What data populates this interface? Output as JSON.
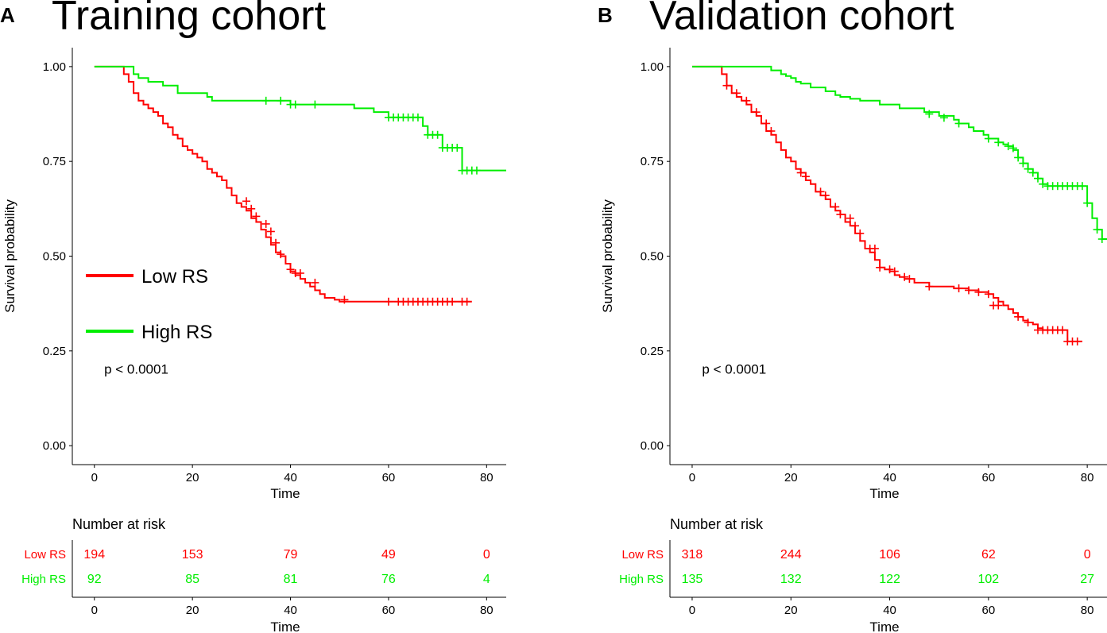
{
  "colors": {
    "low": "#ff0000",
    "high": "#00ee00",
    "axis": "#000000"
  },
  "chart_data": [
    {
      "type": "line",
      "panel": "A",
      "title": "Training cohort",
      "xlabel": "Time",
      "ylabel": "Survival probability",
      "xlim": [
        -4.5,
        84
      ],
      "ylim": [
        -0.05,
        1.05
      ],
      "xticks": [
        0,
        20,
        40,
        60,
        80
      ],
      "xtick_labels": [
        "0",
        "20",
        "40",
        "60",
        "80"
      ],
      "yticks": [
        0,
        0.25,
        0.5,
        0.75,
        1.0
      ],
      "ytick_labels": [
        "0.00",
        "0.25",
        "0.50",
        "0.75",
        "1.00"
      ],
      "pvalue": "p < 0.0001",
      "legend": {
        "position": "middle-left",
        "entries": [
          "Low RS",
          "High RS"
        ]
      },
      "series": [
        {
          "name": "Low RS",
          "color_key": "low",
          "x": [
            0,
            5,
            6,
            7,
            8,
            9,
            10,
            11,
            12,
            13,
            14,
            15,
            16,
            17,
            18,
            19,
            20,
            21,
            22,
            23,
            24,
            25,
            26,
            27,
            28,
            29,
            30,
            31,
            32,
            33,
            34,
            35,
            36,
            37,
            38,
            39,
            40,
            41,
            42,
            43,
            44,
            45,
            46,
            47,
            48,
            49,
            50,
            52,
            77
          ],
          "y": [
            1.0,
            1.0,
            0.98,
            0.96,
            0.93,
            0.91,
            0.9,
            0.89,
            0.88,
            0.87,
            0.85,
            0.84,
            0.82,
            0.81,
            0.79,
            0.78,
            0.77,
            0.76,
            0.75,
            0.73,
            0.72,
            0.71,
            0.7,
            0.68,
            0.66,
            0.64,
            0.63,
            0.62,
            0.6,
            0.59,
            0.57,
            0.55,
            0.53,
            0.51,
            0.5,
            0.48,
            0.46,
            0.45,
            0.44,
            0.43,
            0.42,
            0.41,
            0.4,
            0.39,
            0.39,
            0.385,
            0.38,
            0.38,
            0.38
          ],
          "censor_x": [
            31,
            32,
            33,
            35,
            36,
            37,
            38,
            40,
            41,
            42,
            45,
            51,
            60,
            62,
            63,
            64,
            65,
            66,
            67,
            68,
            69,
            70,
            71,
            72,
            73,
            75,
            76
          ],
          "censor_y": [
            0.645,
            0.625,
            0.605,
            0.585,
            0.565,
            0.535,
            0.505,
            0.465,
            0.455,
            0.455,
            0.43,
            0.385,
            0.38,
            0.38,
            0.38,
            0.38,
            0.38,
            0.38,
            0.38,
            0.38,
            0.38,
            0.38,
            0.38,
            0.38,
            0.38,
            0.38,
            0.38
          ]
        },
        {
          "name": "High RS",
          "color_key": "high",
          "x": [
            0,
            6,
            8,
            9,
            11,
            14,
            17,
            23,
            24,
            35,
            40,
            42,
            53,
            57,
            59,
            60,
            67,
            68,
            71,
            75,
            84
          ],
          "y": [
            1.0,
            1.0,
            0.98,
            0.97,
            0.96,
            0.95,
            0.93,
            0.92,
            0.91,
            0.91,
            0.9,
            0.9,
            0.89,
            0.88,
            0.88,
            0.866,
            0.843,
            0.82,
            0.786,
            0.726,
            0.726
          ],
          "censor_x": [
            35,
            38,
            40,
            41,
            45,
            60,
            61,
            62,
            63,
            64,
            65,
            66,
            68,
            69,
            70,
            71,
            72,
            73,
            74,
            75,
            76,
            77,
            78
          ],
          "censor_y": [
            0.91,
            0.91,
            0.9,
            0.9,
            0.9,
            0.866,
            0.866,
            0.866,
            0.866,
            0.866,
            0.866,
            0.866,
            0.82,
            0.82,
            0.82,
            0.786,
            0.786,
            0.786,
            0.786,
            0.726,
            0.726,
            0.726,
            0.726
          ]
        }
      ],
      "risk_table": {
        "title": "Number at risk",
        "xlabel": "Time",
        "rows": [
          {
            "label": "Low RS",
            "color_key": "low",
            "values": [
              "194",
              "153",
              "79",
              "49",
              "0"
            ]
          },
          {
            "label": "High RS",
            "color_key": "high",
            "values": [
              "92",
              "85",
              "81",
              "76",
              "4"
            ]
          }
        ]
      }
    },
    {
      "type": "line",
      "panel": "B",
      "title": "Validation cohort",
      "xlabel": "Time",
      "ylabel": "Survival probability",
      "xlim": [
        -4.5,
        84
      ],
      "ylim": [
        -0.05,
        1.05
      ],
      "xticks": [
        0,
        20,
        40,
        60,
        80
      ],
      "xtick_labels": [
        "0",
        "20",
        "40",
        "60",
        "80"
      ],
      "yticks": [
        0,
        0.25,
        0.5,
        0.75,
        1.0
      ],
      "ytick_labels": [
        "0.00",
        "0.25",
        "0.50",
        "0.75",
        "1.00"
      ],
      "pvalue": "p < 0.0001",
      "series": [
        {
          "name": "Low RS",
          "color_key": "low",
          "x": [
            0,
            5,
            6,
            7,
            8,
            9,
            10,
            11,
            12,
            13,
            14,
            15,
            16,
            17,
            18,
            19,
            20,
            21,
            22,
            23,
            24,
            25,
            26,
            27,
            28,
            29,
            30,
            31,
            32,
            33,
            34,
            35,
            36,
            37,
            38,
            39,
            40,
            41,
            42,
            43,
            45,
            48,
            53,
            56,
            58,
            60,
            61,
            62,
            63,
            64,
            65,
            66,
            67,
            68,
            69,
            70,
            71,
            73,
            76,
            79
          ],
          "y": [
            1.0,
            1.0,
            0.98,
            0.95,
            0.93,
            0.92,
            0.91,
            0.9,
            0.88,
            0.87,
            0.85,
            0.83,
            0.82,
            0.8,
            0.78,
            0.76,
            0.75,
            0.73,
            0.72,
            0.7,
            0.69,
            0.67,
            0.66,
            0.65,
            0.63,
            0.62,
            0.61,
            0.59,
            0.58,
            0.56,
            0.54,
            0.52,
            0.51,
            0.49,
            0.47,
            0.465,
            0.46,
            0.45,
            0.445,
            0.44,
            0.43,
            0.42,
            0.415,
            0.41,
            0.405,
            0.4,
            0.39,
            0.38,
            0.37,
            0.36,
            0.35,
            0.34,
            0.33,
            0.325,
            0.32,
            0.31,
            0.305,
            0.305,
            0.275,
            0.275
          ],
          "censor_x": [
            7,
            9,
            11,
            13,
            15,
            16,
            22,
            23,
            26,
            27,
            29,
            30,
            32,
            33,
            34,
            36,
            37,
            38,
            40,
            41,
            43,
            44,
            48,
            54,
            56,
            58,
            60,
            61,
            62,
            66,
            68,
            70,
            71,
            72,
            73,
            74,
            75,
            76,
            77,
            78
          ],
          "censor_y": [
            0.95,
            0.93,
            0.91,
            0.88,
            0.85,
            0.83,
            0.72,
            0.71,
            0.67,
            0.66,
            0.63,
            0.61,
            0.6,
            0.58,
            0.56,
            0.52,
            0.52,
            0.47,
            0.465,
            0.46,
            0.445,
            0.44,
            0.42,
            0.415,
            0.41,
            0.405,
            0.4,
            0.37,
            0.37,
            0.34,
            0.325,
            0.305,
            0.305,
            0.305,
            0.305,
            0.305,
            0.305,
            0.275,
            0.275,
            0.275
          ]
        },
        {
          "name": "High RS",
          "color_key": "high",
          "x": [
            0,
            15,
            16,
            18,
            19,
            20,
            21,
            22,
            24,
            27,
            29,
            30,
            32,
            34,
            38,
            42,
            47,
            50,
            53,
            54,
            56,
            57,
            59,
            60,
            62,
            63,
            64,
            65,
            66,
            67,
            68,
            69,
            70,
            71,
            72,
            80,
            81,
            82,
            83,
            84
          ],
          "y": [
            1.0,
            1.0,
            0.99,
            0.98,
            0.975,
            0.97,
            0.96,
            0.955,
            0.945,
            0.935,
            0.925,
            0.92,
            0.915,
            0.91,
            0.9,
            0.89,
            0.88,
            0.87,
            0.86,
            0.85,
            0.84,
            0.83,
            0.82,
            0.81,
            0.8,
            0.795,
            0.79,
            0.78,
            0.76,
            0.745,
            0.73,
            0.72,
            0.705,
            0.69,
            0.685,
            0.64,
            0.6,
            0.57,
            0.545,
            0.545
          ],
          "censor_x": [
            48,
            51,
            54,
            60,
            62,
            64,
            65,
            66,
            67,
            68,
            69,
            70,
            71,
            72,
            73,
            74,
            75,
            76,
            77,
            78,
            79,
            80,
            82,
            83
          ],
          "censor_y": [
            0.875,
            0.865,
            0.85,
            0.81,
            0.8,
            0.79,
            0.785,
            0.76,
            0.745,
            0.73,
            0.72,
            0.705,
            0.69,
            0.685,
            0.685,
            0.685,
            0.685,
            0.685,
            0.685,
            0.685,
            0.685,
            0.64,
            0.57,
            0.545
          ]
        }
      ],
      "risk_table": {
        "title": "Number at risk",
        "xlabel": "Time",
        "rows": [
          {
            "label": "Low RS",
            "color_key": "low",
            "values": [
              "318",
              "244",
              "106",
              "62",
              "0"
            ]
          },
          {
            "label": "High RS",
            "color_key": "high",
            "values": [
              "135",
              "132",
              "122",
              "102",
              "27"
            ]
          }
        ]
      }
    }
  ]
}
